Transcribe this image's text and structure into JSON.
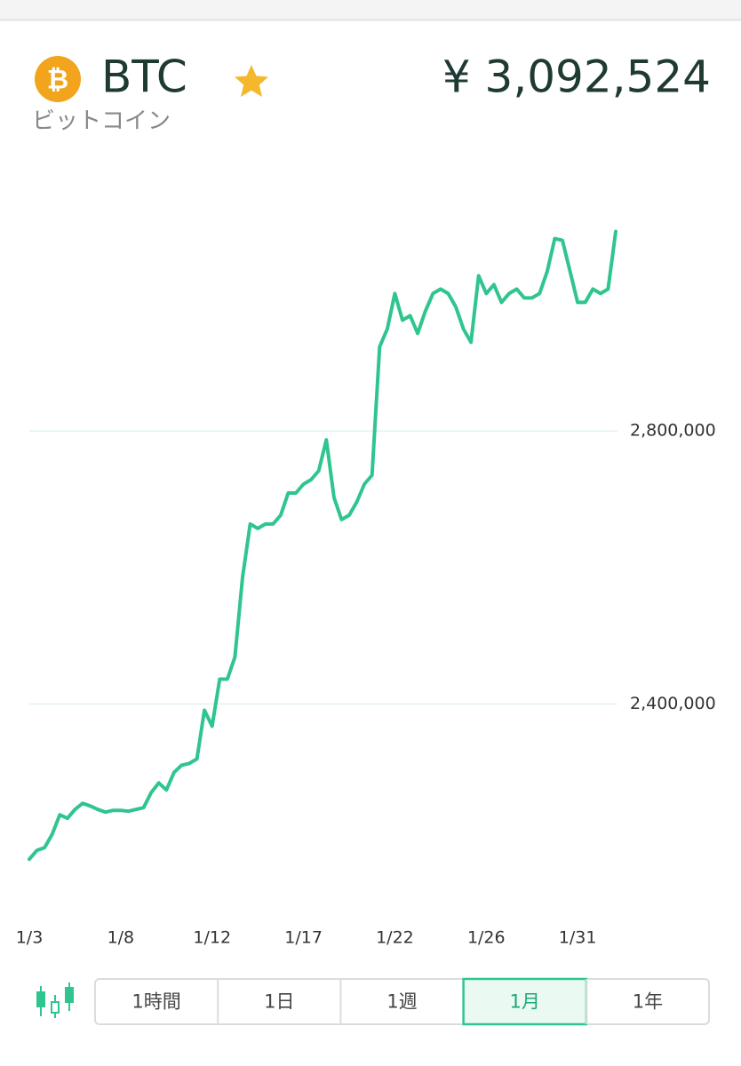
{
  "header": {
    "icon_symbol": "₿",
    "symbol": "BTC",
    "name": "ビットコイン",
    "price": "¥ 3,092,524"
  },
  "chart_data": {
    "type": "line",
    "categories": [
      "1/3",
      null,
      null,
      null,
      null,
      null,
      null,
      null,
      null,
      null,
      null,
      null,
      "1/8",
      null,
      null,
      null,
      null,
      null,
      null,
      null,
      null,
      null,
      null,
      null,
      "1/12",
      null,
      null,
      null,
      null,
      null,
      null,
      null,
      null,
      null,
      null,
      null,
      "1/17",
      null,
      null,
      null,
      null,
      null,
      null,
      null,
      null,
      null,
      null,
      null,
      "1/22",
      null,
      null,
      null,
      null,
      null,
      null,
      null,
      null,
      null,
      null,
      null,
      "1/26",
      null,
      null,
      null,
      null,
      null,
      null,
      null,
      null,
      null,
      null,
      null,
      "1/31",
      null,
      null,
      null,
      null,
      null
    ],
    "values": [
      2172700,
      2185700,
      2189600,
      2209100,
      2237700,
      2232500,
      2245500,
      2254500,
      2250600,
      2245500,
      2241600,
      2244200,
      2244200,
      2242900,
      2245500,
      2248100,
      2270100,
      2284400,
      2274000,
      2300000,
      2310400,
      2313000,
      2319500,
      2390900,
      2367500,
      2436400,
      2436400,
      2468800,
      2585700,
      2663600,
      2657100,
      2663600,
      2663600,
      2676600,
      2709100,
      2709100,
      2722100,
      2728600,
      2741600,
      2787000,
      2702600,
      2670100,
      2676600,
      2696100,
      2722100,
      2735100,
      2923400,
      2949400,
      3001300,
      2962300,
      2968800,
      2942900,
      2975300,
      3001300,
      3007800,
      3001300,
      2981800,
      2949400,
      2929900,
      3027300,
      3001300,
      3014300,
      2988300,
      3001300,
      3007800,
      2994800,
      2994800,
      3001300,
      3033800,
      3081800,
      3079200,
      3033800,
      2988300,
      2988300,
      3007800,
      3001300,
      3007800,
      3092200
    ],
    "color": "#30c58e",
    "ylim": [
      2130000,
      3145000
    ],
    "yticks": [
      {
        "value": 2400000,
        "label": "2,400,000"
      },
      {
        "value": 2800000,
        "label": "2,800,000"
      }
    ],
    "grid": true
  },
  "periods": [
    "1時間",
    "1日",
    "1週",
    "1月",
    "1年"
  ],
  "selected_period": 3
}
